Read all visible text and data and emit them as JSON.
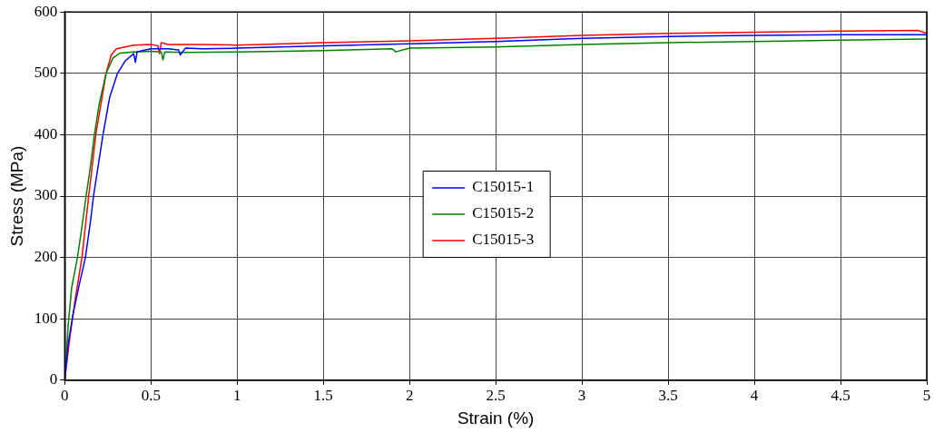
{
  "chart_data": {
    "type": "line",
    "xlabel": "Strain (%)",
    "ylabel": "Stress (MPa)",
    "xlim": [
      0,
      5
    ],
    "ylim": [
      0,
      600
    ],
    "xticks": [
      0,
      0.5,
      1,
      1.5,
      2,
      2.5,
      3,
      3.5,
      4,
      4.5,
      5
    ],
    "yticks": [
      0,
      100,
      200,
      300,
      400,
      500,
      600
    ],
    "grid": true,
    "legend": "center",
    "marker": "none",
    "line_style": "solid",
    "series": [
      {
        "name": "C15015-1",
        "color": "#0000ff",
        "x": [
          0,
          0.02,
          0.05,
          0.08,
          0.12,
          0.15,
          0.167,
          0.2,
          0.222,
          0.26,
          0.306,
          0.35,
          0.4,
          0.41,
          0.42,
          0.45,
          0.5,
          0.6,
          0.66,
          0.67,
          0.7,
          0.8,
          1,
          1.5,
          2,
          2.5,
          3,
          3.5,
          4,
          4.5,
          5
        ],
        "values": [
          0,
          60,
          110,
          150,
          200,
          260,
          300,
          360,
          400,
          460,
          500,
          520,
          532,
          518,
          535,
          537,
          540,
          540,
          538,
          530,
          541,
          540,
          541,
          545,
          548,
          552,
          557,
          560,
          562,
          563,
          563
        ]
      },
      {
        "name": "C15015-2",
        "color": "#008000",
        "x": [
          0,
          0.02,
          0.04,
          0.074,
          0.1,
          0.124,
          0.15,
          0.172,
          0.2,
          0.24,
          0.28,
          0.32,
          0.4,
          0.5,
          0.56,
          0.57,
          0.58,
          0.7,
          1,
          1.5,
          1.9,
          1.92,
          2,
          2.5,
          3,
          3.5,
          4,
          4.5,
          5
        ],
        "values": [
          0,
          90,
          150,
          200,
          250,
          300,
          350,
          400,
          450,
          500,
          525,
          533,
          535,
          536,
          535,
          522,
          535,
          534,
          535,
          537,
          540,
          535,
          541,
          543,
          547,
          550,
          552,
          554,
          556
        ]
      },
      {
        "name": "C15015-3",
        "color": "#ff0000",
        "x": [
          0,
          0.03,
          0.06,
          0.1,
          0.139,
          0.16,
          0.18,
          0.21,
          0.24,
          0.27,
          0.3,
          0.4,
          0.5,
          0.54,
          0.55,
          0.56,
          0.6,
          0.8,
          1,
          1.5,
          2,
          2.5,
          3,
          3.5,
          4,
          4.5,
          4.95,
          5
        ],
        "values": [
          0,
          70,
          130,
          200,
          300,
          350,
          400,
          450,
          500,
          530,
          540,
          546,
          547,
          545,
          532,
          550,
          547,
          547,
          546,
          550,
          553,
          557,
          562,
          565,
          567,
          569,
          570,
          565
        ]
      }
    ]
  }
}
